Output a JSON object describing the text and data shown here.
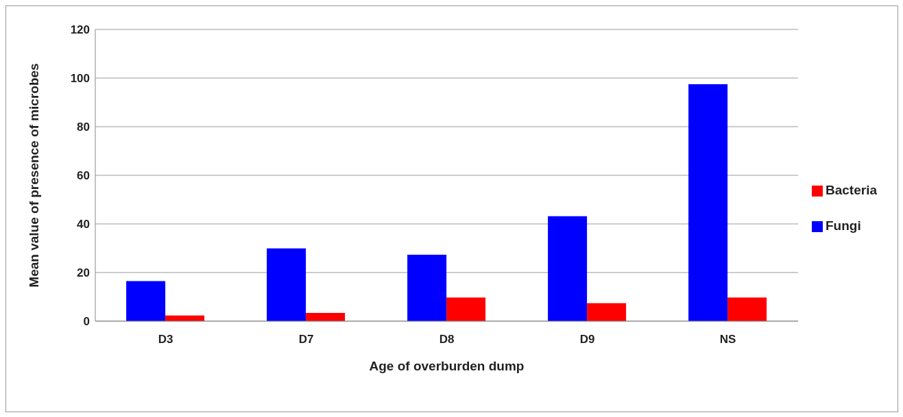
{
  "chart_data": {
    "type": "bar",
    "xlabel": "Age of overburden dump",
    "ylabel": "Mean value of presence of microbes",
    "categories": [
      "D3",
      "D7",
      "D8",
      "D9",
      "NS"
    ],
    "series": [
      {
        "name": "Fungi",
        "color": "#0000ff",
        "values": [
          16.5,
          29.9,
          27.3,
          43.2,
          97.5
        ]
      },
      {
        "name": "Bacteria",
        "color": "#ff0000",
        "values": [
          2.3,
          3.4,
          9.7,
          7.4,
          9.7
        ]
      }
    ],
    "ylim": [
      0,
      120
    ],
    "yticks": [
      0,
      20,
      40,
      60,
      80,
      100,
      120
    ],
    "grid": "y",
    "legend": "right"
  }
}
